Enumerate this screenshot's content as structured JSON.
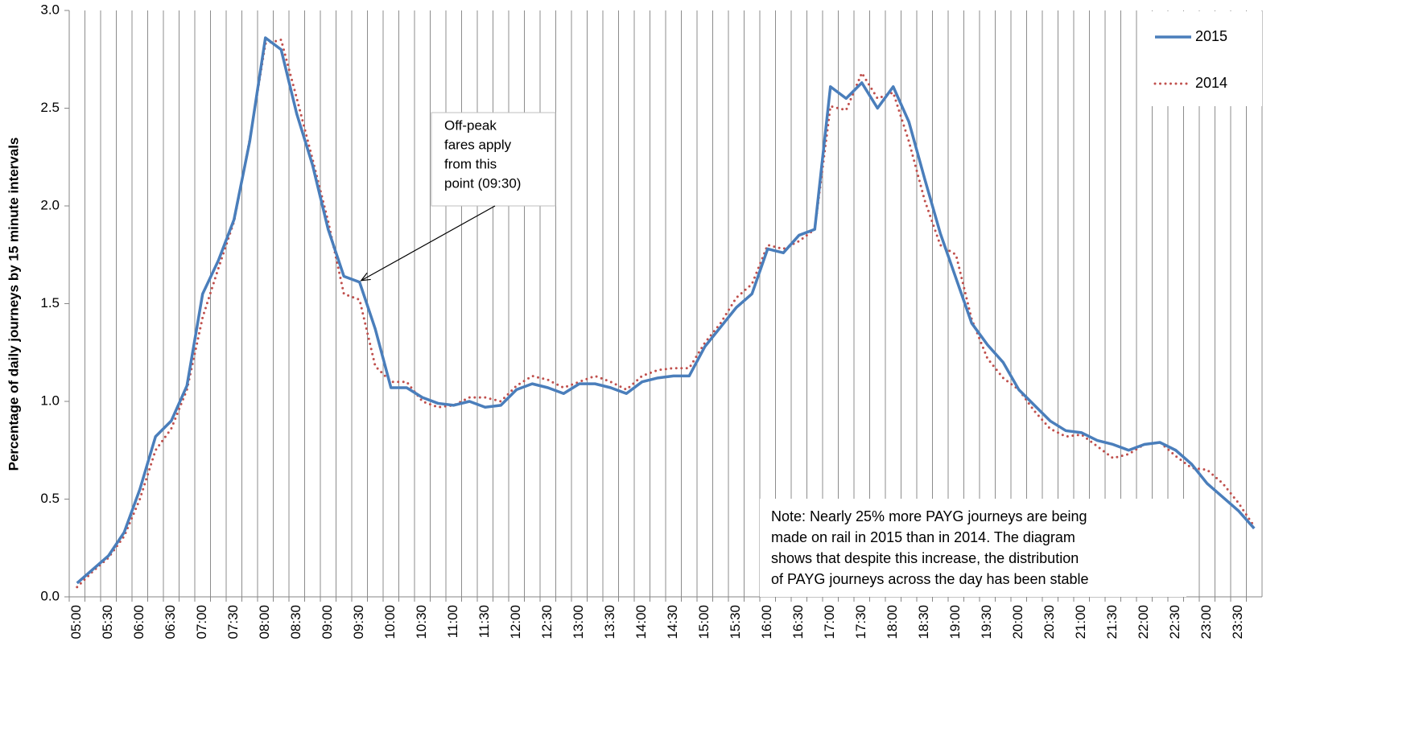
{
  "chart_data": {
    "type": "line",
    "y_label": "Percentage of daily journeys by 15 minute intervals",
    "categories": [
      "05:00",
      null,
      "05:30",
      null,
      "06:00",
      null,
      "06:30",
      null,
      "07:00",
      null,
      "07:30",
      null,
      "08:00",
      null,
      "08:30",
      null,
      "09:00",
      null,
      "09:30",
      null,
      "10:00",
      null,
      "10:30",
      null,
      "11:00",
      null,
      "11:30",
      null,
      "12:00",
      null,
      "12:30",
      null,
      "13:00",
      null,
      "13:30",
      null,
      "14:00",
      null,
      "14:30",
      null,
      "15:00",
      null,
      "15:30",
      null,
      "16:00",
      null,
      "16:30",
      null,
      "17:00",
      null,
      "17:30",
      null,
      "18:00",
      null,
      "18:30",
      null,
      "19:00",
      null,
      "19:30",
      null,
      "20:00",
      null,
      "20:30",
      null,
      "21:00",
      null,
      "21:30",
      null,
      "22:00",
      null,
      "22:30",
      null,
      "23:00",
      null,
      "23:30",
      null
    ],
    "series": [
      {
        "name": "2015",
        "color": "#4a7ebb",
        "style": "solid",
        "values": [
          0.07,
          0.14,
          0.21,
          0.33,
          0.55,
          0.82,
          0.9,
          1.08,
          1.55,
          1.72,
          1.93,
          2.33,
          2.86,
          2.8,
          2.47,
          2.21,
          1.88,
          1.64,
          1.61,
          1.37,
          1.07,
          1.07,
          1.02,
          0.99,
          0.98,
          1.0,
          0.97,
          0.98,
          1.06,
          1.09,
          1.07,
          1.04,
          1.09,
          1.09,
          1.07,
          1.04,
          1.1,
          1.12,
          1.13,
          1.13,
          1.28,
          1.38,
          1.48,
          1.55,
          1.78,
          1.76,
          1.85,
          1.88,
          2.61,
          2.55,
          2.63,
          2.5,
          2.61,
          2.43,
          2.14,
          1.86,
          1.63,
          1.4,
          1.29,
          1.2,
          1.06,
          0.98,
          0.9,
          0.85,
          0.84,
          0.8,
          0.78,
          0.75,
          0.78,
          0.79,
          0.75,
          0.68,
          0.58,
          0.51,
          0.44,
          0.35
        ]
      },
      {
        "name": "2014",
        "color": "#c0504d",
        "style": "dotted",
        "values": [
          0.05,
          0.13,
          0.2,
          0.31,
          0.5,
          0.75,
          0.86,
          1.06,
          1.43,
          1.68,
          1.92,
          2.34,
          2.83,
          2.85,
          2.55,
          2.24,
          1.92,
          1.55,
          1.52,
          1.18,
          1.1,
          1.1,
          1.0,
          0.97,
          0.98,
          1.02,
          1.02,
          1.0,
          1.08,
          1.13,
          1.11,
          1.07,
          1.1,
          1.13,
          1.1,
          1.06,
          1.13,
          1.16,
          1.17,
          1.17,
          1.3,
          1.4,
          1.53,
          1.6,
          1.8,
          1.78,
          1.82,
          1.88,
          2.51,
          2.49,
          2.68,
          2.55,
          2.58,
          2.33,
          2.03,
          1.8,
          1.75,
          1.42,
          1.22,
          1.12,
          1.06,
          0.95,
          0.86,
          0.82,
          0.83,
          0.77,
          0.71,
          0.73,
          0.78,
          0.79,
          0.72,
          0.66,
          0.65,
          0.58,
          0.48,
          0.36
        ]
      }
    ],
    "ylim": [
      0,
      3
    ],
    "yticks": [
      {
        "value": 0,
        "label": "0.0"
      },
      {
        "value": 0.5,
        "label": "0.5"
      },
      {
        "value": 1,
        "label": "1.0"
      },
      {
        "value": 1.5,
        "label": "1.5"
      },
      {
        "value": 2,
        "label": "2.0"
      },
      {
        "value": 2.5,
        "label": "2.5"
      },
      {
        "value": 3,
        "label": "3.0"
      }
    ],
    "grid": "x",
    "legend": "top-right",
    "callout": {
      "lines": [
        "Off-peak",
        "fares apply",
        "from this",
        "point (09:30)"
      ],
      "target": 18,
      "series": 0
    },
    "note": [
      "Note: Nearly 25% more PAYG journeys are being",
      "made on rail in 2015 than in 2014. The diagram",
      "shows that despite this increase, the distribution",
      "of PAYG journeys across the day has been stable"
    ]
  }
}
